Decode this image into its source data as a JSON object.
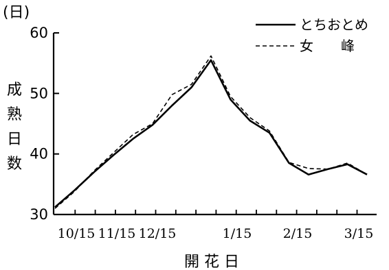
{
  "chart_data": {
    "type": "line",
    "xlabel": "開 花 日",
    "ylabel": "成熟日数",
    "yunit": "(日)",
    "ylim": [
      30,
      60
    ],
    "yticks": [
      30,
      40,
      50,
      60
    ],
    "xticks": [
      "10/15",
      "11/15",
      "12/15",
      "1/15",
      "2/15",
      "3/15"
    ],
    "grid": false,
    "legend_position": "top-right",
    "series": [
      {
        "name": "とちおとめ",
        "style": "solid",
        "color": "#000000",
        "points": [
          [
            "10/1",
            31.2
          ],
          [
            "10/15",
            34.0
          ],
          [
            "11/1",
            37.0
          ],
          [
            "11/15",
            39.8
          ],
          [
            "12/1",
            42.5
          ],
          [
            "12/15",
            44.8
          ],
          [
            "12/31",
            48.0
          ],
          [
            "1/15",
            51.0
          ],
          [
            "2/1",
            55.5
          ],
          [
            "2/15",
            49.0
          ],
          [
            "3/1",
            45.5
          ],
          [
            "3/15",
            43.5
          ],
          [
            "4/1",
            38.5
          ],
          [
            "4/15",
            36.6
          ],
          [
            "5/1",
            37.5
          ],
          [
            "5/15",
            38.3
          ],
          [
            "6/1",
            36.6
          ]
        ]
      },
      {
        "name": "女　　峰",
        "style": "dashed",
        "color": "#000000",
        "points": [
          [
            "10/1",
            31.0
          ],
          [
            "10/15",
            33.8
          ],
          [
            "11/1",
            37.2
          ],
          [
            "11/15",
            40.2
          ],
          [
            "12/1",
            43.2
          ],
          [
            "12/15",
            45.0
          ],
          [
            "12/31",
            49.8
          ],
          [
            "1/15",
            51.5
          ],
          [
            "2/1",
            56.2
          ],
          [
            "2/15",
            49.5
          ],
          [
            "3/1",
            46.0
          ],
          [
            "3/15",
            43.8
          ],
          [
            "4/1",
            38.6
          ],
          [
            "4/15",
            37.6
          ],
          [
            "5/1",
            37.5
          ],
          [
            "5/15",
            38.5
          ],
          [
            "6/1",
            36.6
          ]
        ]
      }
    ]
  }
}
